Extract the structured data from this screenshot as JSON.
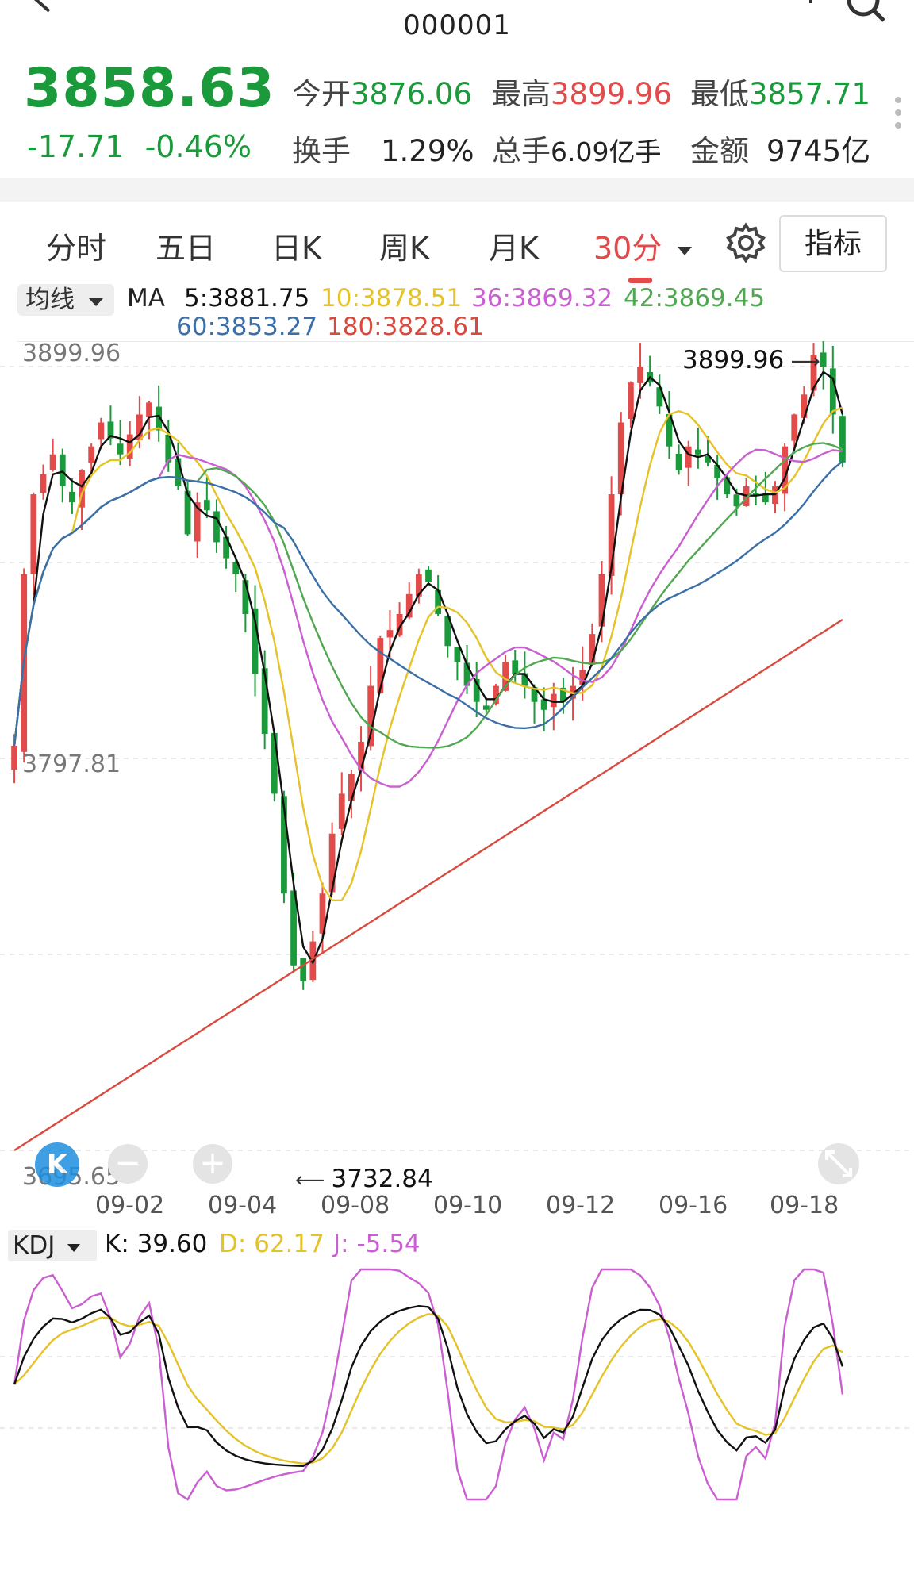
{
  "header": {
    "title": "000001"
  },
  "quote": {
    "price": "3858.63",
    "change": "-17.71",
    "change_pct": "-0.46%",
    "stats": [
      {
        "label": "今开",
        "value": "3876.06",
        "color": "green"
      },
      {
        "label": "最高",
        "value": "3899.96",
        "color": "red"
      },
      {
        "label": "最低",
        "value": "3857.71",
        "color": "green"
      },
      {
        "label": "换手",
        "value": "1.29%",
        "color": "dark"
      },
      {
        "label": "总手",
        "value": "6.09亿手",
        "color": "dark"
      },
      {
        "label": "金额",
        "value": "9745亿",
        "color": "dark"
      }
    ]
  },
  "tabs": [
    {
      "label": "分时"
    },
    {
      "label": "五日"
    },
    {
      "label": "日K"
    },
    {
      "label": "周K"
    },
    {
      "label": "月K"
    },
    {
      "label": "30分",
      "active": true
    }
  ],
  "indicator_button": "指标",
  "ma_legend": {
    "dropdown": "均线",
    "prefix": "MA",
    "items": [
      {
        "label": "5:3881.75",
        "color": "#111111"
      },
      {
        "label": "10:3878.51",
        "color": "#e6c229"
      },
      {
        "label": "36:3869.32",
        "color": "#c95fd0"
      },
      {
        "label": "42:3869.45",
        "color": "#52a852"
      },
      {
        "label": "60:3853.27",
        "color": "#3b6fa8"
      },
      {
        "label": "180:3828.61",
        "color": "#d94a3e"
      }
    ]
  },
  "price_axis": {
    "top": "3899.96",
    "mid": "3797.81",
    "bottom": "3695.65"
  },
  "annotations": {
    "high": "3899.96",
    "low": "3732.84"
  },
  "kline_badge": "K",
  "x_axis": [
    "09-02",
    "09-04",
    "09-08",
    "09-10",
    "09-12",
    "09-16",
    "09-18"
  ],
  "kdj_legend": {
    "dropdown": "KDJ",
    "k": "K: 39.60",
    "d": "D: 62.17",
    "j": "J: -5.54"
  },
  "colors": {
    "up": "#e34b4b",
    "down": "#1a9a3a",
    "ma5": "#111111",
    "ma10": "#e6c229",
    "ma36": "#c95fd0",
    "ma42": "#52a852",
    "ma60": "#3b6fa8",
    "ma180": "#d94a3e"
  },
  "chart_data": {
    "type": "candlestick",
    "y_range": [
      3695.65,
      3899.96
    ],
    "x_tick_labels": [
      "09-02",
      "09-04",
      "09-08",
      "09-10",
      "09-12",
      "09-16",
      "09-18"
    ],
    "ma_last": {
      "MA5": 3881.75,
      "MA10": 3878.51,
      "MA36": 3869.32,
      "MA42": 3869.45,
      "MA60": 3853.27,
      "MA180": 3828.61
    },
    "high_marker": 3899.96,
    "low_marker": 3732.84,
    "close_series": [
      3797,
      3840,
      3860,
      3865,
      3870,
      3862,
      3858,
      3866,
      3872,
      3878,
      3874,
      3870,
      3875,
      3880,
      3883,
      3876,
      3868,
      3862,
      3850,
      3858,
      3856,
      3848,
      3844,
      3840,
      3830,
      3815,
      3800,
      3785,
      3760,
      3742,
      3738,
      3748,
      3760,
      3775,
      3785,
      3790,
      3798,
      3812,
      3824,
      3826,
      3830,
      3835,
      3840,
      3838,
      3830,
      3822,
      3818,
      3812,
      3808,
      3806,
      3812,
      3818,
      3815,
      3812,
      3808,
      3806,
      3810,
      3808,
      3812,
      3816,
      3825,
      3840,
      3860,
      3878,
      3888,
      3892,
      3888,
      3882,
      3872,
      3866,
      3872,
      3870,
      3868,
      3864,
      3860,
      3857,
      3862,
      3860,
      3858,
      3862,
      3872,
      3880,
      3885,
      3895,
      3892,
      3880,
      3868
    ]
  }
}
